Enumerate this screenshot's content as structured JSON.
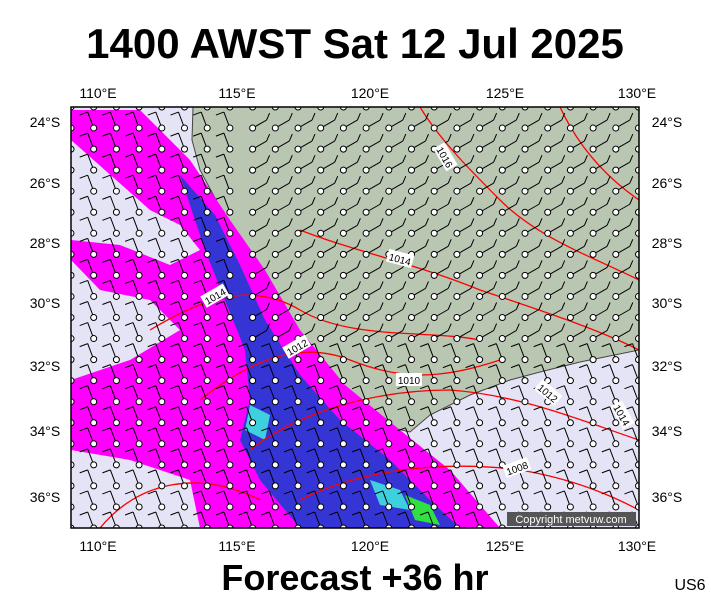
{
  "header": {
    "title": "1400 AWST Sat 12 Jul 2025"
  },
  "map": {
    "lon_labels": [
      "110°E",
      "115°E",
      "120°E",
      "125°E",
      "130°E"
    ],
    "lat_labels": [
      "24°S",
      "26°S",
      "28°S",
      "30°S",
      "32°S",
      "34°S",
      "36°S"
    ],
    "isobar_labels": [
      "1016",
      "1014",
      "1014",
      "1012",
      "1010",
      "1012",
      "1014",
      "1008"
    ],
    "copyright": "Copyright metvuw.com"
  },
  "footer": {
    "forecast": "Forecast +36 hr",
    "code": "US6"
  }
}
